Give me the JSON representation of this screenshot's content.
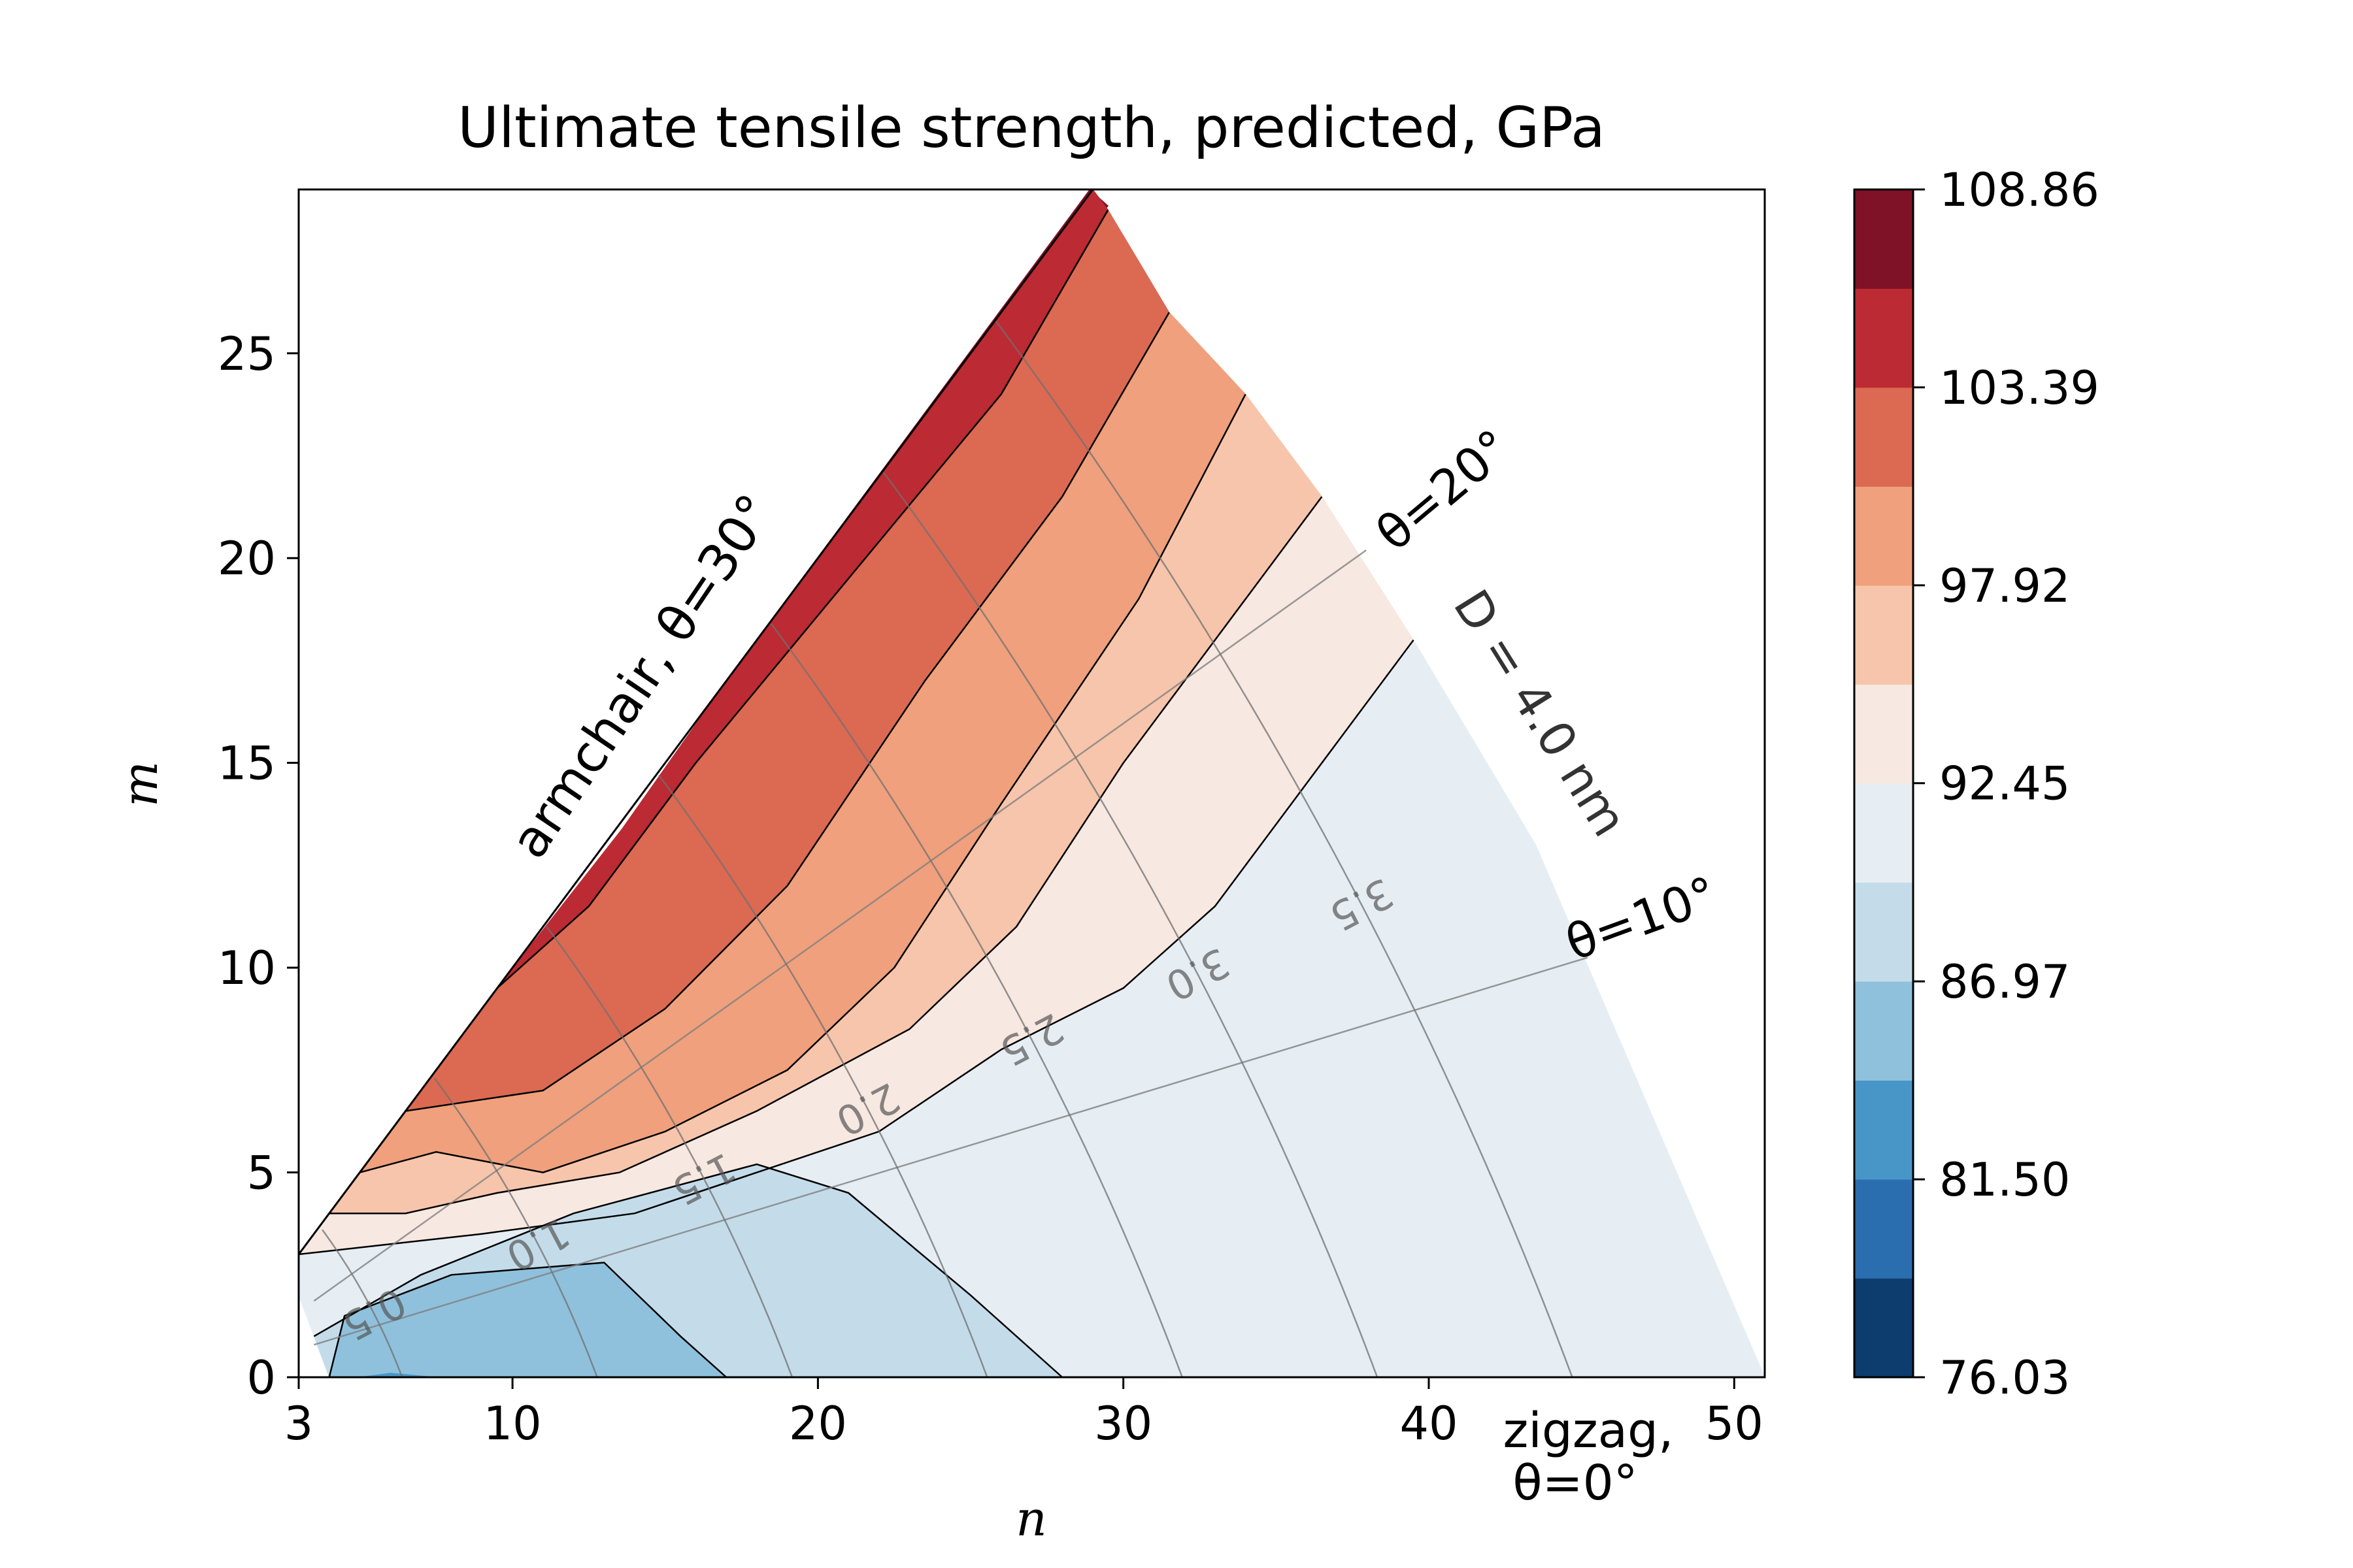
{
  "chart_data": {
    "type": "heatmap",
    "subtype": "filled-contour",
    "title": "Ultimate tensile strength, predicted, GPa",
    "xlabel": "n",
    "ylabel": "m",
    "xlim": [
      3,
      51
    ],
    "ylim": [
      0,
      29
    ],
    "x_ticks": [
      3,
      10,
      20,
      30,
      40,
      50
    ],
    "y_ticks": [
      0,
      5,
      10,
      15,
      20,
      25
    ],
    "colorbar": {
      "min": 76.03,
      "max": 108.86,
      "levels": 12,
      "tick_values": [
        76.03,
        81.5,
        86.97,
        92.45,
        97.92,
        103.39,
        108.86
      ],
      "tick_labels": [
        "76.03",
        "81.50",
        "86.97",
        "92.45",
        "97.92",
        "103.39",
        "108.86"
      ],
      "colors": [
        "#0d3c6e",
        "#2b6eb0",
        "#4896c8",
        "#8fc1dd",
        "#c4dcea",
        "#e6eef4",
        "#f7e8e1",
        "#f7c5ab",
        "#f0a07c",
        "#dc6952",
        "#bc2a33",
        "#7f1227"
      ]
    },
    "domain": {
      "description": "chiral indices with 0 <= m <= n and tube diameter D <= 4.0 nm",
      "boundary_polygon_nm": [
        [
          3,
          0
        ],
        [
          3,
          3
        ],
        [
          29,
          29
        ],
        [
          34,
          24
        ],
        [
          36.5,
          21.5
        ],
        [
          39.5,
          18
        ],
        [
          43.5,
          13
        ],
        [
          51,
          0
        ]
      ]
    },
    "regions": [
      {
        "level_index": 11,
        "polygon": [
          [
            28.9,
            29
          ],
          [
            29.5,
            28.6
          ],
          [
            17,
            17
          ],
          [
            13.6,
            13.4
          ],
          [
            17.2,
            17.2
          ]
        ]
      },
      {
        "level_index": 10,
        "polygon": [
          [
            29,
            29
          ],
          [
            29.5,
            28.5
          ],
          [
            26,
            24
          ],
          [
            21,
            19.5
          ],
          [
            16,
            15
          ],
          [
            12.5,
            11.5
          ],
          [
            9.5,
            9.5
          ],
          [
            13.6,
            13.4
          ],
          [
            17,
            17
          ],
          [
            21,
            21
          ]
        ]
      },
      {
        "level_index": 9,
        "polygon": [
          [
            9.5,
            9.5
          ],
          [
            12.5,
            11.5
          ],
          [
            16,
            15
          ],
          [
            21,
            19.5
          ],
          [
            26,
            24
          ],
          [
            29.5,
            28.5
          ],
          [
            31.5,
            26
          ],
          [
            28,
            21.5
          ],
          [
            23.5,
            17
          ],
          [
            19,
            12
          ],
          [
            15,
            9
          ],
          [
            11,
            7
          ],
          [
            6.5,
            6.5
          ]
        ]
      },
      {
        "level_index": 8,
        "polygon": [
          [
            6.5,
            6.5
          ],
          [
            11,
            7
          ],
          [
            15,
            9
          ],
          [
            19,
            12
          ],
          [
            23.5,
            17
          ],
          [
            28,
            21.5
          ],
          [
            31.5,
            26
          ],
          [
            34,
            24
          ],
          [
            30.5,
            19
          ],
          [
            26,
            14
          ],
          [
            22.5,
            10
          ],
          [
            19,
            7.5
          ],
          [
            15,
            6
          ],
          [
            11,
            5
          ],
          [
            7.5,
            5.5
          ],
          [
            5,
            5
          ]
        ]
      },
      {
        "level_index": 7,
        "polygon": [
          [
            5,
            5
          ],
          [
            7.5,
            5.5
          ],
          [
            11,
            5
          ],
          [
            15,
            6
          ],
          [
            19,
            7.5
          ],
          [
            22.5,
            10
          ],
          [
            26,
            14
          ],
          [
            30.5,
            19
          ],
          [
            34,
            24
          ],
          [
            36.5,
            21.5
          ],
          [
            33,
            18
          ],
          [
            30,
            15
          ],
          [
            26.5,
            11
          ],
          [
            23,
            8.5
          ],
          [
            18,
            6.5
          ],
          [
            13.5,
            5
          ],
          [
            9.5,
            4.5
          ],
          [
            6.5,
            4
          ],
          [
            4,
            4
          ]
        ]
      },
      {
        "level_index": 6,
        "polygon": [
          [
            4,
            4
          ],
          [
            6.5,
            4
          ],
          [
            9.5,
            4.5
          ],
          [
            13.5,
            5
          ],
          [
            18,
            6.5
          ],
          [
            23,
            8.5
          ],
          [
            26.5,
            11
          ],
          [
            30,
            15
          ],
          [
            33,
            18
          ],
          [
            36.5,
            21.5
          ],
          [
            39.5,
            18
          ],
          [
            36,
            14.5
          ],
          [
            33,
            11.5
          ],
          [
            30,
            9.5
          ],
          [
            26,
            8
          ],
          [
            22,
            6
          ],
          [
            18,
            5
          ],
          [
            14,
            4
          ],
          [
            9,
            3.5
          ],
          [
            3,
            3
          ]
        ]
      },
      {
        "level_index": 5,
        "polygon": [
          [
            3,
            3
          ],
          [
            9,
            3.5
          ],
          [
            14,
            4
          ],
          [
            18,
            5
          ],
          [
            22,
            6
          ],
          [
            26,
            8
          ],
          [
            30,
            9.5
          ],
          [
            33,
            11.5
          ],
          [
            36,
            14.5
          ],
          [
            39.5,
            18
          ],
          [
            43.5,
            13
          ],
          [
            51,
            0
          ],
          [
            28,
            0
          ],
          [
            25,
            2
          ],
          [
            21,
            4.5
          ],
          [
            18,
            5.2
          ],
          [
            12,
            4
          ],
          [
            7,
            2.5
          ],
          [
            3.5,
            1
          ],
          [
            3,
            2
          ]
        ]
      },
      {
        "level_index": 4,
        "polygon": [
          [
            3.5,
            1
          ],
          [
            7,
            2.5
          ],
          [
            12,
            4
          ],
          [
            18,
            5.2
          ],
          [
            21,
            4.5
          ],
          [
            25,
            2
          ],
          [
            28,
            0
          ],
          [
            4,
            0
          ]
        ]
      },
      {
        "level_index": 3,
        "polygon": [
          [
            4,
            0
          ],
          [
            4.5,
            1.5
          ],
          [
            8,
            2.5
          ],
          [
            13,
            2.8
          ],
          [
            15.5,
            1
          ],
          [
            17,
            0
          ]
        ]
      },
      {
        "level_index": 2,
        "polygon": [
          [
            5,
            0
          ],
          [
            6,
            0.1
          ],
          [
            7.5,
            0
          ]
        ]
      }
    ],
    "contour_lines": [
      [
        [
          3.5,
          1
        ],
        [
          7,
          2.5
        ],
        [
          12,
          4
        ],
        [
          18,
          5.2
        ],
        [
          21,
          4.5
        ],
        [
          25,
          2
        ],
        [
          28,
          0
        ]
      ],
      [
        [
          4,
          0
        ],
        [
          4.5,
          1.5
        ],
        [
          8,
          2.5
        ],
        [
          13,
          2.8
        ],
        [
          15.5,
          1
        ],
        [
          17,
          0
        ]
      ],
      [
        [
          3,
          3
        ],
        [
          9,
          3.5
        ],
        [
          14,
          4
        ],
        [
          18,
          5
        ],
        [
          22,
          6
        ],
        [
          26,
          8
        ],
        [
          30,
          9.5
        ],
        [
          33,
          11.5
        ],
        [
          36,
          14.5
        ],
        [
          39.5,
          18
        ]
      ],
      [
        [
          4,
          4
        ],
        [
          6.5,
          4
        ],
        [
          9.5,
          4.5
        ],
        [
          13.5,
          5
        ],
        [
          18,
          6.5
        ],
        [
          23,
          8.5
        ],
        [
          26.5,
          11
        ],
        [
          30,
          15
        ],
        [
          33,
          18
        ],
        [
          36.5,
          21.5
        ]
      ],
      [
        [
          5,
          5
        ],
        [
          7.5,
          5.5
        ],
        [
          11,
          5
        ],
        [
          15,
          6
        ],
        [
          19,
          7.5
        ],
        [
          22.5,
          10
        ],
        [
          26,
          14
        ],
        [
          30.5,
          19
        ],
        [
          34,
          24
        ]
      ],
      [
        [
          6.5,
          6.5
        ],
        [
          11,
          7
        ],
        [
          15,
          9
        ],
        [
          19,
          12
        ],
        [
          23.5,
          17
        ],
        [
          28,
          21.5
        ],
        [
          31.5,
          26
        ]
      ],
      [
        [
          9.5,
          9.5
        ],
        [
          12.5,
          11.5
        ],
        [
          16,
          15
        ],
        [
          21,
          19.5
        ],
        [
          26,
          24
        ],
        [
          29.5,
          28.5
        ]
      ]
    ],
    "diameter_isolines": [
      {
        "label": "0.5",
        "D": 0.5
      },
      {
        "label": "1.0",
        "D": 1.0
      },
      {
        "label": "1.5",
        "D": 1.5
      },
      {
        "label": "2.0",
        "D": 2.0
      },
      {
        "label": "2.5",
        "D": 2.5
      },
      {
        "label": "3.0",
        "D": 3.0
      },
      {
        "label": "3.5",
        "D": 3.5
      }
    ],
    "chiral_angle_lines": [
      {
        "label": "θ=10°",
        "theta_deg": 10
      },
      {
        "label": "θ=20°",
        "theta_deg": 20
      }
    ],
    "annotations": {
      "armchair": "armchair, θ=30°",
      "d_max": "D = 4.0 nm",
      "theta20": "θ=20°",
      "theta10": "θ=10°",
      "zigzag_line1": "zigzag,",
      "zigzag_line2": "θ=0°"
    }
  }
}
